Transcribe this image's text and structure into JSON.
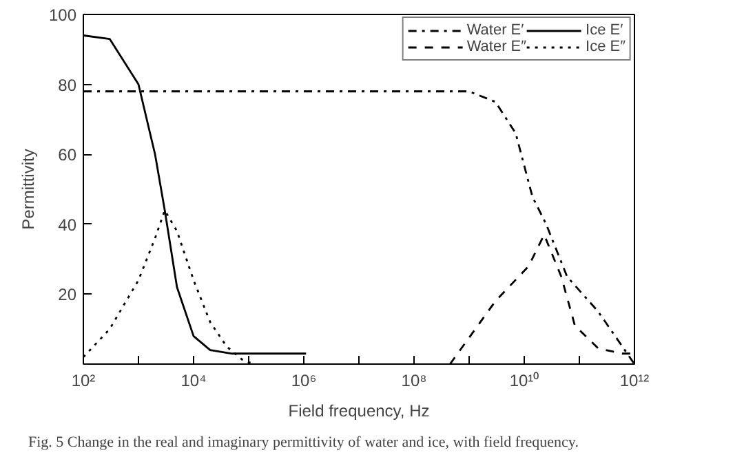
{
  "chart_data": {
    "type": "line",
    "xlabel": "Field frequency, Hz",
    "ylabel": "Permittivity",
    "log": "x",
    "grid": false,
    "legend": "top right",
    "marker": "none",
    "annotations": [
      "Fig. 5  Change in the real and imaginary permittivity of water and ice, with field frequency."
    ],
    "xlim": [
      100,
      1000000000000
    ],
    "ylim": [
      0,
      100
    ],
    "xticks": [
      {
        "value": 100,
        "label": "10²"
      },
      {
        "value": 1000,
        "label": null
      },
      {
        "value": 10000,
        "label": "10⁴"
      },
      {
        "value": 100000,
        "label": null
      },
      {
        "value": 1000000,
        "label": "10⁶"
      },
      {
        "value": 10000000,
        "label": null
      },
      {
        "value": 100000000,
        "label": "10⁸"
      },
      {
        "value": 1000000000,
        "label": null
      },
      {
        "value": 10000000000,
        "label": "10¹⁰"
      },
      {
        "value": 100000000000,
        "label": null
      },
      {
        "value": 1000000000000,
        "label": "10¹²"
      }
    ],
    "yticks": [
      20,
      40,
      60,
      80,
      100
    ],
    "series": [
      {
        "name": "Water E′",
        "color": "#000000",
        "line_style": "dashdot",
        "x": [
          100,
          1000000000,
          3000000000,
          7000000000,
          14000000000,
          25000000000,
          60000000000,
          220000000000,
          1000000000000
        ],
        "values": [
          78,
          78,
          75,
          66,
          48,
          40,
          25,
          15,
          0
        ]
      },
      {
        "name": "Water E″",
        "color": "#000000",
        "line_style": "dashed",
        "x": [
          450000000,
          3000000000,
          12000000000,
          23000000000,
          47000000000,
          83000000000,
          220000000000,
          600000000000,
          1000000000000
        ],
        "values": [
          0,
          18,
          28,
          37,
          25,
          11,
          4.5,
          3,
          3
        ]
      },
      {
        "name": "Ice E′",
        "color": "#000000",
        "line_style": "solid",
        "x": [
          100,
          300,
          1000,
          2000,
          3000,
          5000,
          10000,
          20000,
          50000,
          1100000
        ],
        "values": [
          94,
          93,
          80,
          60,
          44,
          22,
          8,
          4,
          3,
          3
        ]
      },
      {
        "name": "Ice E″",
        "color": "#000000",
        "line_style": "dotted",
        "x": [
          100,
          300,
          1000,
          2000,
          3000,
          5000,
          10000,
          20000,
          40000,
          80000,
          130000
        ],
        "values": [
          2,
          10,
          24,
          36,
          44,
          38,
          24,
          12,
          5,
          1,
          0
        ]
      }
    ]
  }
}
